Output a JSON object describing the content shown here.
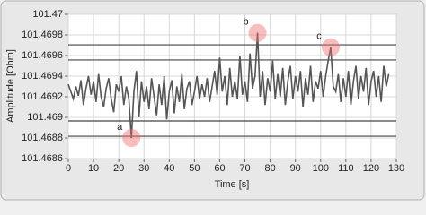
{
  "chart_data": {
    "type": "line",
    "x_label": "Time [s]",
    "y_label": "Amplitude [Ohm]",
    "xlim": [
      0,
      130
    ],
    "xticks": [
      0,
      10,
      20,
      30,
      40,
      50,
      60,
      70,
      80,
      90,
      100,
      110,
      120,
      130
    ],
    "ylim": [
      101.4686,
      101.47
    ],
    "yticks": [
      101.4686,
      101.4688,
      101.469,
      101.4692,
      101.4694,
      101.4696,
      101.4698,
      101.47
    ],
    "grid": true,
    "reference_lines": [
      101.469704,
      101.469557,
      101.468965,
      101.468817
    ],
    "annotations": [
      {
        "text": "a",
        "x": 25,
        "y": 101.4688
      },
      {
        "text": "b",
        "x": 75,
        "y": 101.46982
      },
      {
        "text": "c",
        "x": 104,
        "y": 101.46968
      }
    ],
    "series": [
      {
        "color": "#555555",
        "x": [
          0,
          1,
          2,
          3,
          4,
          5,
          6,
          7,
          8,
          9,
          10,
          11,
          12,
          13,
          14,
          15,
          16,
          17,
          18,
          19,
          20,
          21,
          22,
          23,
          24,
          25,
          26,
          27,
          28,
          29,
          30,
          31,
          32,
          33,
          34,
          35,
          36,
          37,
          38,
          39,
          40,
          41,
          42,
          43,
          44,
          45,
          46,
          47,
          48,
          49,
          50,
          51,
          52,
          53,
          54,
          55,
          56,
          57,
          58,
          59,
          60,
          61,
          62,
          63,
          64,
          65,
          66,
          67,
          68,
          69,
          70,
          71,
          72,
          73,
          74,
          75,
          76,
          77,
          78,
          79,
          80,
          81,
          82,
          83,
          84,
          85,
          86,
          87,
          88,
          89,
          90,
          91,
          92,
          93,
          94,
          95,
          96,
          97,
          98,
          99,
          100,
          101,
          102,
          103,
          104,
          105,
          106,
          107,
          108,
          109,
          110,
          111,
          112,
          113,
          114,
          115,
          116,
          117,
          118,
          119,
          120,
          121,
          122,
          123,
          124,
          125,
          126,
          127
        ],
        "values": [
          101.46932,
          101.46925,
          101.46918,
          101.4693,
          101.46921,
          101.46936,
          101.46912,
          101.46928,
          101.4694,
          101.46922,
          101.46935,
          101.46915,
          101.46942,
          101.4692,
          101.4691,
          101.46928,
          101.46938,
          101.46918,
          101.46905,
          101.46932,
          101.46925,
          101.4694,
          101.46912,
          101.4693,
          101.46918,
          101.4688,
          101.46925,
          101.46945,
          101.469,
          101.46935,
          101.46915,
          101.4693,
          101.46908,
          101.46938,
          101.4692,
          101.46902,
          101.46932,
          101.46912,
          101.4694,
          101.46898,
          101.46925,
          101.46936,
          101.46904,
          101.4693,
          101.46915,
          101.46942,
          101.46908,
          101.46928,
          101.46935,
          101.46912,
          101.46925,
          101.4694,
          101.46918,
          101.46932,
          101.4692,
          101.46938,
          101.46915,
          101.4693,
          101.46945,
          101.46922,
          101.46958,
          101.46925,
          101.4694,
          101.46912,
          101.46948,
          101.4692,
          101.46935,
          101.46918,
          101.4696,
          101.46922,
          101.46935,
          101.46915,
          101.46962,
          101.46928,
          101.4694,
          101.46982,
          101.4692,
          101.46945,
          101.46912,
          101.46938,
          101.46925,
          101.46955,
          101.46918,
          101.46942,
          101.4692,
          101.46948,
          101.46912,
          101.46935,
          101.4695,
          101.46918,
          101.4694,
          101.46925,
          101.46945,
          101.4691,
          101.46938,
          101.46922,
          101.4695,
          101.46915,
          101.46935,
          101.46928,
          101.46945,
          101.4692,
          101.4694,
          101.46955,
          101.46968,
          101.4693,
          101.46925,
          101.46942,
          101.46915,
          101.46938,
          101.4692,
          101.46945,
          101.46912,
          101.46935,
          101.4695,
          101.46918,
          101.4694,
          101.46925,
          101.46948,
          101.46912,
          101.46935,
          101.46945,
          101.4692,
          101.4694,
          101.46915,
          101.4695,
          101.4693,
          101.46942
        ]
      }
    ]
  }
}
